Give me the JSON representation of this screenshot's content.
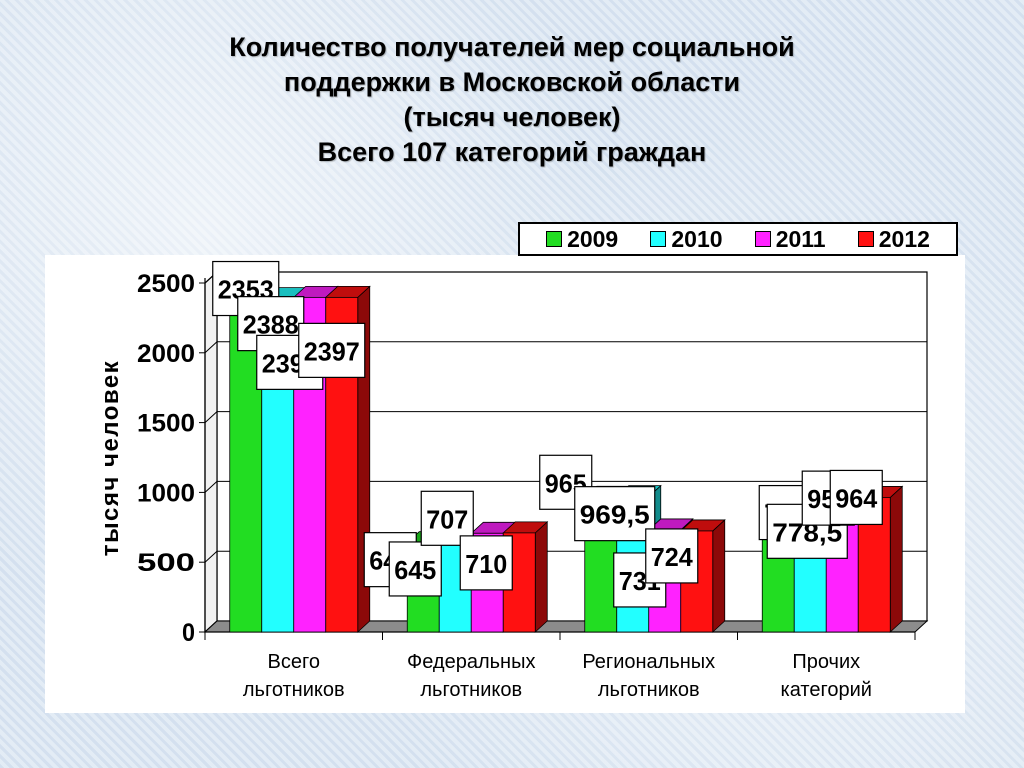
{
  "chart_data": {
    "type": "bar",
    "title_lines": [
      "Количество получателей мер социальной",
      "поддержки в Московской области",
      "(тысяч человек)",
      "Всего 107 категорий граждан"
    ],
    "ylabel": "тысяч человек",
    "xlabel": "",
    "ylim": [
      0,
      2500
    ],
    "yticks": [
      "0",
      "500",
      "1000",
      "1500",
      "2000",
      "2500"
    ],
    "ytick_values": [
      0,
      500,
      1000,
      1500,
      2000,
      2500
    ],
    "grid": true,
    "legend_position": "top-right",
    "categories": [
      [
        "Всего",
        "льготников"
      ],
      [
        "Федеральных",
        "льготников"
      ],
      [
        "Региональных",
        "льготников"
      ],
      [
        "Прочих",
        "категорий"
      ]
    ],
    "series": [
      {
        "name": "2009",
        "color": "#22dd22",
        "values": [
          2353,
          640,
          965,
          748
        ],
        "labels": [
          "2353",
          "640",
          "965",
          "748"
        ]
      },
      {
        "name": "2010",
        "color": "#22ffff",
        "values": [
          2388,
          645,
          969.5,
          778.5
        ],
        "labels": [
          "2388",
          "645",
          "969,5",
          "778,5"
        ]
      },
      {
        "name": "2011",
        "color": "#ff22ff",
        "values": [
          2397,
          707,
          731,
          959
        ],
        "labels": [
          "2397",
          "707",
          "731",
          "959"
        ]
      },
      {
        "name": "2012",
        "color": "#ff1111",
        "values": [
          2397,
          710,
          724,
          964
        ],
        "labels": [
          "2397",
          "710",
          "724",
          "964"
        ]
      }
    ]
  }
}
